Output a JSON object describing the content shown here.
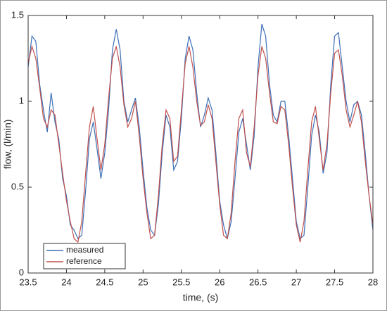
{
  "chart_data": {
    "type": "line",
    "x_label": "time, (s)",
    "y_label": "flow, (l/min)",
    "x": [
      23.5,
      23.55,
      23.6,
      23.65,
      23.7,
      23.75,
      23.8,
      23.85,
      23.9,
      23.95,
      24,
      24.05,
      24.1,
      24.15,
      24.2,
      24.25,
      24.3,
      24.35,
      24.4,
      24.45,
      24.5,
      24.55,
      24.6,
      24.65,
      24.7,
      24.75,
      24.8,
      24.85,
      24.9,
      24.95,
      25,
      25.05,
      25.1,
      25.15,
      25.2,
      25.25,
      25.3,
      25.35,
      25.4,
      25.45,
      25.5,
      25.55,
      25.6,
      25.65,
      25.7,
      25.75,
      25.8,
      25.85,
      25.9,
      25.95,
      26,
      26.05,
      26.1,
      26.15,
      26.2,
      26.25,
      26.3,
      26.35,
      26.4,
      26.45,
      26.5,
      26.55,
      26.6,
      26.65,
      26.7,
      26.75,
      26.8,
      26.85,
      26.9,
      26.95,
      27,
      27.05,
      27.1,
      27.15,
      27.2,
      27.25,
      27.3,
      27.35,
      27.4,
      27.45,
      27.5,
      27.55,
      27.6,
      27.65,
      27.7,
      27.75,
      27.8,
      27.85,
      27.9,
      27.95,
      28
    ],
    "series": [
      {
        "name": "measured",
        "color": "#3d6fb6",
        "values": [
          1.2,
          1.38,
          1.35,
          1.1,
          0.95,
          0.82,
          1.05,
          0.88,
          0.78,
          0.55,
          0.45,
          0.28,
          0.25,
          0.2,
          0.22,
          0.48,
          0.78,
          0.88,
          0.72,
          0.55,
          0.7,
          0.95,
          1.3,
          1.42,
          1.3,
          1.0,
          0.88,
          0.95,
          1.02,
          0.85,
          0.6,
          0.38,
          0.25,
          0.22,
          0.4,
          0.7,
          0.92,
          0.85,
          0.6,
          0.65,
          0.9,
          1.25,
          1.38,
          1.3,
          1.05,
          0.85,
          0.92,
          1.02,
          0.95,
          0.7,
          0.42,
          0.28,
          0.2,
          0.3,
          0.55,
          0.82,
          0.9,
          0.75,
          0.6,
          0.8,
          1.2,
          1.45,
          1.38,
          1.1,
          0.92,
          0.88,
          1.0,
          1.0,
          0.8,
          0.55,
          0.3,
          0.2,
          0.22,
          0.5,
          0.8,
          0.92,
          0.82,
          0.58,
          0.7,
          1.1,
          1.38,
          1.4,
          1.2,
          1.0,
          0.88,
          0.98,
          1.0,
          0.92,
          0.7,
          0.45,
          0.25
        ]
      },
      {
        "name": "reference",
        "color": "#c0504d",
        "values": [
          1.22,
          1.32,
          1.25,
          1.08,
          0.9,
          0.85,
          0.95,
          0.92,
          0.75,
          0.58,
          0.42,
          0.3,
          0.2,
          0.18,
          0.3,
          0.58,
          0.85,
          0.97,
          0.78,
          0.6,
          0.75,
          1.02,
          1.25,
          1.32,
          1.2,
          0.98,
          0.85,
          0.9,
          1.0,
          0.8,
          0.55,
          0.35,
          0.2,
          0.22,
          0.45,
          0.75,
          0.95,
          0.9,
          0.65,
          0.68,
          0.95,
          1.22,
          1.32,
          1.2,
          1.0,
          0.86,
          0.88,
          0.98,
          0.9,
          0.65,
          0.4,
          0.22,
          0.2,
          0.35,
          0.65,
          0.9,
          0.95,
          0.7,
          0.62,
          0.85,
          1.15,
          1.32,
          1.25,
          1.05,
          0.88,
          0.87,
          0.97,
          0.95,
          0.75,
          0.5,
          0.28,
          0.18,
          0.3,
          0.6,
          0.88,
          0.97,
          0.78,
          0.6,
          0.75,
          1.05,
          1.28,
          1.3,
          1.15,
          0.95,
          0.85,
          0.92,
          1.0,
          0.88,
          0.65,
          0.45,
          0.28
        ]
      }
    ],
    "xlim": [
      23.5,
      28
    ],
    "xticks": [
      23.5,
      24,
      24.5,
      25,
      25.5,
      26,
      26.5,
      27,
      27.5,
      28
    ],
    "ylim": [
      0,
      1.5
    ],
    "yticks": [
      0,
      0.5,
      1,
      1.5
    ],
    "grid": false,
    "legend": "lower-left"
  }
}
